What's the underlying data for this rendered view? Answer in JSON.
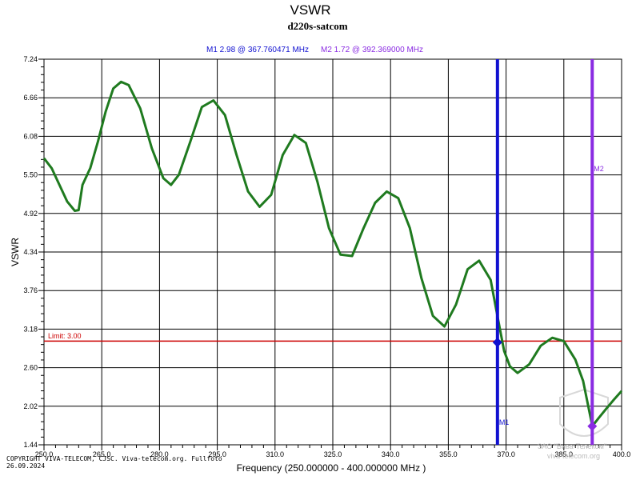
{
  "title": "VSWR",
  "subtitle": "d220s-satcom",
  "markers_header": {
    "m1": "M1  2.98 @ 367.760471 MHz",
    "m2": "M2  1.72 @ 392.369000 MHz"
  },
  "copyright": {
    "line1": "COPYRIGHT VIVA-TELECOM, CJSC. Viva-telecom.org. Fullfoto",
    "line2": "26.09.2024"
  },
  "watermark": {
    "line1": "ЗАО \"Вива-Телеком\"",
    "line2": "viva-telecom.org"
  },
  "colors": {
    "trace": "#1f7a1f",
    "m1": "#1010d0",
    "m2": "#8a2be2",
    "limit": "#cc0000",
    "grid": "#000000"
  },
  "chart_data": {
    "type": "line",
    "title": "VSWR",
    "subtitle": "d220s-satcom",
    "xlabel": "Frequency (250.000000 - 400.000000 MHz )",
    "ylabel": "VSWR",
    "xlim": [
      250,
      400
    ],
    "ylim": [
      1.44,
      7.24
    ],
    "xticks": [
      250,
      265,
      280,
      295,
      310,
      325,
      340,
      355,
      370,
      385,
      400
    ],
    "xtick_labels": [
      "250.0",
      "265.0",
      "280.0",
      "295.0",
      "310.0",
      "325.0",
      "340.0",
      "355.0",
      "370.0",
      "385.0",
      "400.0"
    ],
    "yticks": [
      1.44,
      2.02,
      2.6,
      3.18,
      3.76,
      4.34,
      4.92,
      5.5,
      6.08,
      6.66,
      7.24
    ],
    "ytick_labels": [
      "1.44",
      "2.02",
      "2.60",
      "3.18",
      "3.76",
      "4.34",
      "4.92",
      "5.50",
      "6.08",
      "6.66",
      "7.24"
    ],
    "grid": true,
    "limit": {
      "value": 3.0,
      "label": "Limit: 3.00"
    },
    "markers": [
      {
        "name": "M1",
        "x": 367.760471,
        "y": 2.98
      },
      {
        "name": "M2",
        "x": 392.369,
        "y": 1.72
      }
    ],
    "series": [
      {
        "x": [
          250,
          252,
          254,
          256,
          258,
          259,
          260,
          262,
          264,
          266,
          268,
          270,
          272,
          275,
          278,
          281,
          283,
          285,
          288,
          291,
          294,
          297,
          300,
          303,
          306,
          309,
          312,
          315,
          318,
          321,
          324,
          327,
          330,
          333,
          336,
          339,
          342,
          345,
          348,
          351,
          354,
          357,
          360,
          363,
          366,
          368,
          369.5,
          371,
          373,
          376,
          379,
          382,
          385,
          388,
          390,
          392.4,
          394,
          396,
          398,
          400
        ],
        "y": [
          5.75,
          5.6,
          5.35,
          5.1,
          4.96,
          4.97,
          5.35,
          5.6,
          6.0,
          6.45,
          6.8,
          6.9,
          6.85,
          6.5,
          5.9,
          5.45,
          5.35,
          5.5,
          6.0,
          6.52,
          6.62,
          6.4,
          5.8,
          5.25,
          5.02,
          5.2,
          5.8,
          6.1,
          5.98,
          5.4,
          4.7,
          4.3,
          4.28,
          4.7,
          5.08,
          5.25,
          5.15,
          4.7,
          3.95,
          3.38,
          3.22,
          3.55,
          4.08,
          4.21,
          3.92,
          3.3,
          2.85,
          2.62,
          2.52,
          2.65,
          2.93,
          3.05,
          3.0,
          2.72,
          2.4,
          1.72,
          1.84,
          1.98,
          2.12,
          2.25
        ]
      }
    ]
  }
}
